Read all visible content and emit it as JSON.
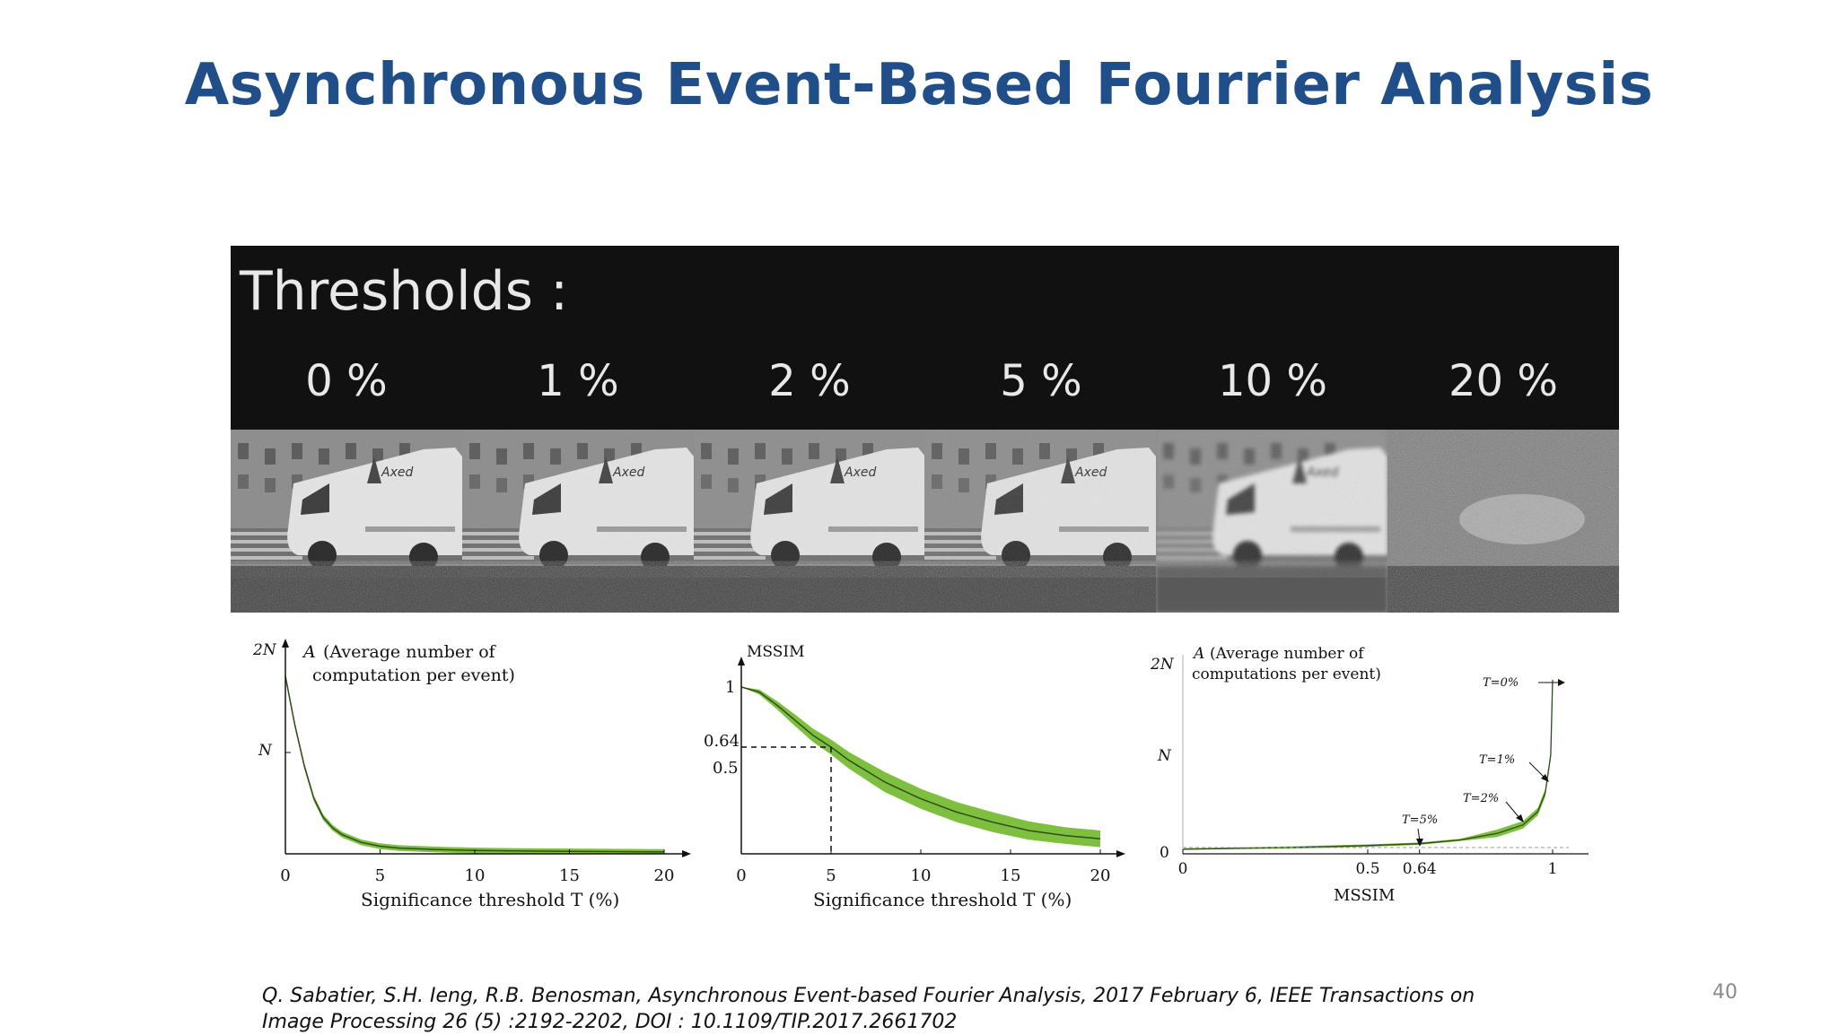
{
  "slide": {
    "title": "Asynchronous Event-Based Fourrier Analysis",
    "page_number": "40",
    "citation": "Q. Sabatier, S.H. Ieng, R.B. Benosman, Asynchronous Event-based Fourier Analysis, 2017 February 6, IEEE Transactions on Image Processing 26 (5) :2192-2202, DOI : 10.1109/TIP.2017.2661702"
  },
  "thresholds": {
    "heading": "Thresholds :",
    "levels": [
      "0 %",
      "1 %",
      "2 %",
      "5 %",
      "10 %",
      "20 %"
    ],
    "van_logo_text": "Axed"
  },
  "colors": {
    "title": "#1f4e89",
    "band_fill": "#7fbf3f",
    "line": "#2d4d1a"
  },
  "chart_data": [
    {
      "type": "line",
      "title": "",
      "ylabel_symbol": "A",
      "ylabel_text": "(Average number of",
      "ylabel_text2": "computation per event)",
      "xlabel": "Significance threshold T (%)",
      "xlim": [
        0,
        20
      ],
      "xticks": [
        "0",
        "5",
        "10",
        "15",
        "20"
      ],
      "yticks": [
        "2N",
        "N"
      ],
      "ylim_units_N": [
        0,
        2
      ],
      "series": [
        {
          "x": [
            0,
            0.5,
            1,
            1.5,
            2,
            2.5,
            3,
            4,
            5,
            6,
            8,
            10,
            12,
            15,
            20
          ],
          "y": [
            1.86,
            1.35,
            0.92,
            0.58,
            0.38,
            0.27,
            0.2,
            0.12,
            0.08,
            0.06,
            0.045,
            0.035,
            0.03,
            0.025,
            0.02
          ],
          "band": 0.03
        }
      ]
    },
    {
      "type": "line",
      "title": "",
      "ylabel": "MSSIM",
      "xlabel": "Significance threshold T (%)",
      "xlim": [
        0,
        20
      ],
      "ylim": [
        0,
        1
      ],
      "xticks": [
        "0",
        "5",
        "10",
        "15",
        "20"
      ],
      "yticks": [
        "1",
        "0.64",
        "0.5"
      ],
      "annotation": {
        "x": 5,
        "y": 0.64
      },
      "series": [
        {
          "x": [
            0,
            1,
            2,
            3,
            4,
            5,
            6,
            8,
            10,
            12,
            14,
            16,
            18,
            20
          ],
          "y": [
            1.0,
            0.97,
            0.89,
            0.8,
            0.71,
            0.64,
            0.56,
            0.43,
            0.33,
            0.25,
            0.19,
            0.14,
            0.11,
            0.09
          ],
          "band": [
            0.0,
            0.015,
            0.025,
            0.035,
            0.04,
            0.045,
            0.05,
            0.06,
            0.06,
            0.06,
            0.06,
            0.055,
            0.05,
            0.05
          ]
        }
      ]
    },
    {
      "type": "line",
      "title": "",
      "ylabel_symbol": "A",
      "ylabel_text": "(Average number of",
      "ylabel_text2": "computations per event)",
      "xlabel": "MSSIM",
      "xlim": [
        0,
        1
      ],
      "xticks": [
        "0",
        "0.5",
        "0.64",
        "1"
      ],
      "yticks": [
        "2N",
        "N",
        "0"
      ],
      "ylim_units_N": [
        0,
        2
      ],
      "annotations": [
        "T=0%",
        "T=1%",
        "T=2%",
        "T=5%"
      ],
      "series": [
        {
          "x": [
            0,
            0.3,
            0.5,
            0.64,
            0.75,
            0.85,
            0.92,
            0.96,
            0.98,
            0.995,
            1.0
          ],
          "y": [
            0.0,
            0.02,
            0.04,
            0.06,
            0.1,
            0.17,
            0.26,
            0.4,
            0.6,
            1.0,
            1.8
          ],
          "band": 0.04
        }
      ]
    }
  ]
}
